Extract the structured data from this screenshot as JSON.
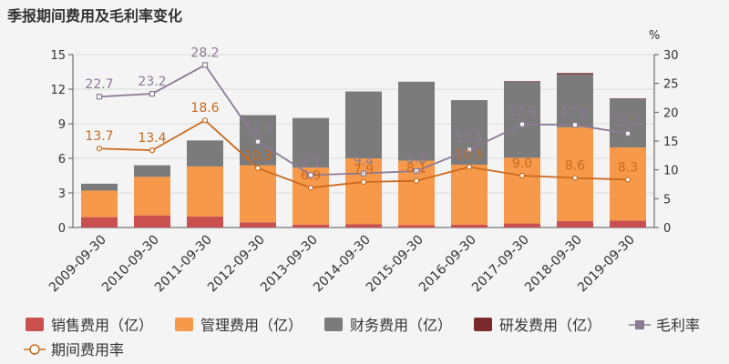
{
  "chart_data": {
    "type": "bar+line",
    "title": "季报期间费用及毛利率变化",
    "right_axis_unit": "%",
    "categories": [
      "2009-09-30",
      "2010-09-30",
      "2011-09-30",
      "2012-09-30",
      "2013-09-30",
      "2014-09-30",
      "2015-09-30",
      "2016-09-30",
      "2017-09-30",
      "2018-09-30",
      "2019-09-30"
    ],
    "left_axis": {
      "ylim": [
        0,
        15
      ],
      "ticks": [
        0,
        3,
        6,
        9,
        12,
        15
      ]
    },
    "right_axis": {
      "ylim": [
        0,
        30
      ],
      "ticks": [
        0,
        5,
        10,
        15,
        20,
        25,
        30
      ]
    },
    "stacked_bars": [
      {
        "name": "销售费用（亿）",
        "color": "#c9504f",
        "values": [
          0.9,
          1.05,
          0.95,
          0.45,
          0.25,
          0.3,
          0.2,
          0.25,
          0.35,
          0.55,
          0.6
        ]
      },
      {
        "name": "管理费用（亿）",
        "color": "#f7994a",
        "values": [
          2.3,
          3.35,
          4.35,
          4.95,
          4.95,
          5.7,
          5.6,
          5.2,
          5.7,
          8.15,
          6.35
        ]
      },
      {
        "name": "财务费用（亿）",
        "color": "#7b7b7b",
        "values": [
          0.6,
          1.0,
          2.25,
          4.35,
          4.3,
          5.8,
          6.85,
          5.6,
          6.6,
          4.6,
          4.2
        ]
      },
      {
        "name": "研发费用（亿）",
        "color": "#7a2a2a",
        "values": [
          0,
          0,
          0,
          0,
          0,
          0,
          0,
          0,
          0.05,
          0.1,
          0.05
        ]
      }
    ],
    "lines": [
      {
        "name": "毛利率",
        "color": "#8c7a95",
        "marker": "square",
        "values": [
          22.7,
          23.2,
          28.2,
          14.9,
          9.1,
          9.4,
          9.8,
          13.5,
          17.9,
          17.8,
          16.3
        ],
        "labels": [
          "22.7",
          "23.2",
          "28.2",
          "14.9",
          "9.1",
          "9.4",
          "9.8",
          "13.5",
          "17.9",
          "17.8",
          "16.3"
        ]
      },
      {
        "name": "期间费用率",
        "color": "#c96a1e",
        "marker": "circle",
        "values": [
          13.7,
          13.4,
          18.6,
          10.3,
          6.9,
          7.9,
          8.1,
          10.5,
          9.0,
          8.6,
          8.3
        ],
        "labels": [
          "13.7",
          "13.4",
          "18.6",
          "10.3",
          "6.9",
          "7.9",
          "8.1",
          "10.5",
          "9.0",
          "8.6",
          "8.3"
        ]
      }
    ],
    "legend": [
      {
        "label": "销售费用（亿）",
        "kind": "box",
        "color": "#c9504f"
      },
      {
        "label": "管理费用（亿）",
        "kind": "box",
        "color": "#f7994a"
      },
      {
        "label": "财务费用（亿）",
        "kind": "box",
        "color": "#7b7b7b"
      },
      {
        "label": "研发费用（亿）",
        "kind": "box",
        "color": "#7a2a2a"
      },
      {
        "label": "毛利率",
        "kind": "line-square",
        "color": "#8c7a95"
      },
      {
        "label": "期间费用率",
        "kind": "line-circle",
        "color": "#c96a1e"
      }
    ],
    "legend_position": "bottom",
    "grid": true
  }
}
